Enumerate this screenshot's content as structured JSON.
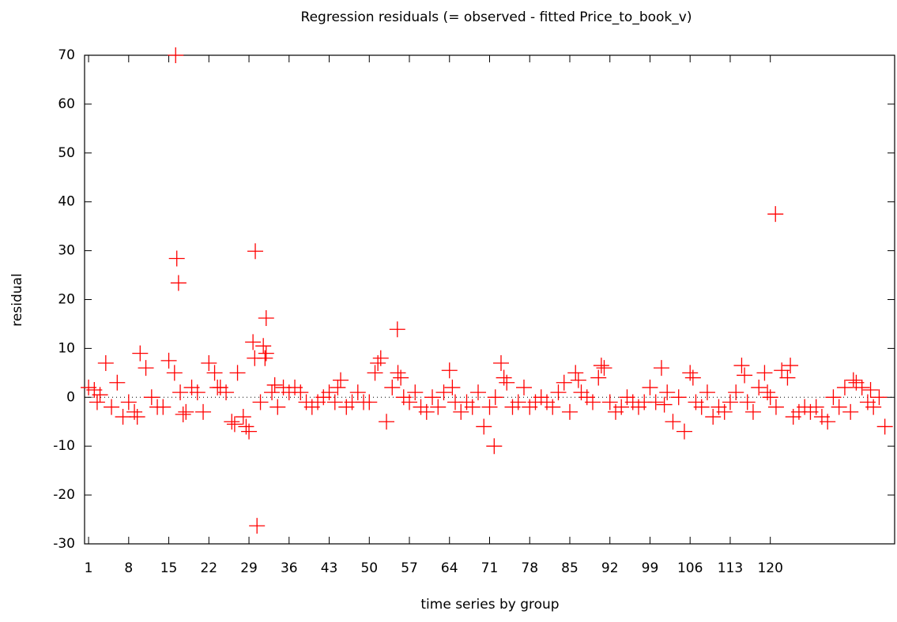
{
  "chart_data": {
    "type": "scatter",
    "title": "Regression residuals (= observed - fitted Price_to_book_v)",
    "x_label": "time series by group",
    "y_label": "residual",
    "color": "#ff0000",
    "zero_line": true,
    "xlim": [
      0.3,
      141.7
    ],
    "ylim": [
      -30,
      70
    ],
    "xticks": [
      1,
      8,
      15,
      22,
      29,
      36,
      43,
      50,
      57,
      64,
      71,
      78,
      85,
      92,
      99,
      106,
      113,
      120
    ],
    "yticks": [
      -30,
      -20,
      -10,
      0,
      10,
      20,
      30,
      40,
      50,
      60,
      70
    ],
    "x": [
      1,
      2,
      3,
      4,
      5,
      6,
      7,
      8,
      9,
      10,
      11,
      12,
      13,
      14,
      15,
      16,
      17,
      18,
      19,
      20,
      21,
      22,
      23,
      24,
      25,
      26,
      27,
      28,
      29,
      30,
      31,
      32,
      33,
      34,
      35,
      36,
      37,
      38,
      39,
      40,
      41,
      42,
      43,
      44,
      45,
      46,
      47,
      48,
      49,
      50,
      51,
      52,
      53,
      54,
      55,
      56,
      57,
      58,
      59,
      60,
      61,
      62,
      63,
      64,
      65,
      66,
      67,
      68,
      69,
      70,
      71,
      72,
      73,
      74,
      75,
      76,
      77,
      78,
      79,
      80,
      81,
      82,
      83,
      84,
      85,
      86,
      87,
      88,
      89,
      90,
      91,
      92,
      93,
      94,
      95,
      96,
      97,
      98,
      99,
      100,
      101,
      102,
      103,
      104,
      105,
      106,
      107,
      108,
      109,
      110,
      111,
      112,
      113,
      114,
      115,
      116,
      117,
      118,
      119,
      120,
      121,
      122,
      123,
      124,
      125,
      126,
      127,
      128,
      129,
      130,
      131,
      132,
      133,
      134,
      135,
      136,
      137,
      138,
      139,
      140,
      16.2,
      16.4,
      16.7,
      30.1,
      30.4,
      32.0,
      54.9,
      120.9,
      71.8,
      29.7,
      31.5,
      31.8,
      2.5,
      9.5,
      17.5,
      23.5,
      26.5,
      28.5,
      33.5,
      44.5,
      51.5,
      55.5,
      64.5,
      73.5,
      86.5,
      90.5,
      101.5,
      106.5,
      115.5,
      119.5,
      123.5,
      134.5,
      137.5
    ],
    "values": [
      2,
      1.5,
      0.5,
      7,
      -2,
      3,
      -4,
      -1,
      -3,
      9,
      6,
      0,
      -2,
      -2,
      7.5,
      5,
      1,
      -3,
      2,
      1,
      -3,
      7,
      5,
      2,
      1,
      -5,
      5,
      -4,
      -7,
      8,
      -1,
      9,
      1,
      -2,
      2,
      1,
      2,
      1,
      -1,
      -2,
      -1,
      0,
      1,
      -1,
      3.5,
      -2,
      -1,
      1,
      -1,
      -1,
      5,
      8,
      -5,
      2,
      5,
      0,
      -1,
      1,
      -2,
      -3,
      0,
      -2,
      1,
      5.5,
      -1,
      -3,
      -1,
      -2,
      1,
      -6,
      -2,
      0,
      7,
      3,
      -2,
      -1,
      2,
      -2,
      -1,
      0,
      -1,
      -2,
      1,
      3,
      -3,
      5,
      1,
      0,
      -1,
      4,
      6,
      -1,
      -3,
      -2,
      0,
      -1,
      -2,
      -1,
      2,
      -1,
      6,
      1,
      -5,
      0,
      -7,
      5,
      -1,
      -2,
      1,
      -4,
      -2,
      -3,
      -1,
      1,
      6.5,
      -1,
      -3,
      2,
      5,
      0,
      -2,
      5.5,
      4,
      -4,
      -3,
      -2,
      -3,
      -2,
      -4,
      -5,
      0,
      -2,
      2,
      -3,
      3,
      2,
      -1,
      -2,
      0,
      -6,
      70,
      28.4,
      23.4,
      29.9,
      -26.3,
      16.2,
      13.9,
      37.5,
      -10,
      11.3,
      10.5,
      8,
      -1,
      -4,
      -3.5,
      2,
      -5.5,
      -6,
      2.5,
      2,
      7,
      4,
      2,
      4,
      3.5,
      6.5,
      -1.5,
      4,
      4.5,
      1,
      6.5,
      3.5,
      1.5
    ]
  }
}
